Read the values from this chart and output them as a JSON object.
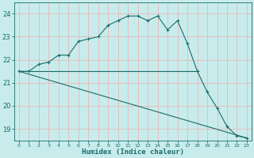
{
  "xlabel": "Humidex (Indice chaleur)",
  "ylabel": "",
  "bg_color": "#c8ecec",
  "grid_color": "#e8b8b8",
  "line_color": "#1a6b6b",
  "xlim": [
    -0.5,
    23.5
  ],
  "ylim": [
    18.5,
    24.5
  ],
  "yticks": [
    19,
    20,
    21,
    22,
    23,
    24
  ],
  "xticks": [
    0,
    1,
    2,
    3,
    4,
    5,
    6,
    7,
    8,
    9,
    10,
    11,
    12,
    13,
    14,
    15,
    16,
    17,
    18,
    19,
    20,
    21,
    22,
    23
  ],
  "curve1_x": [
    0,
    1,
    2,
    3,
    4,
    5,
    6,
    7,
    8,
    9,
    10,
    11,
    12,
    13,
    14,
    15,
    16,
    17,
    18,
    19,
    20,
    21,
    22,
    23
  ],
  "curve1_y": [
    21.5,
    21.5,
    21.8,
    21.9,
    22.2,
    22.2,
    22.8,
    22.9,
    23.0,
    23.5,
    23.7,
    23.9,
    23.9,
    23.7,
    23.9,
    23.3,
    23.7,
    22.7,
    21.5,
    20.6,
    19.9,
    19.1,
    18.7,
    18.6
  ],
  "curve2_x": [
    0,
    18
  ],
  "curve2_y": [
    21.5,
    21.5
  ],
  "curve3_x": [
    0,
    23
  ],
  "curve3_y": [
    21.5,
    18.6
  ]
}
